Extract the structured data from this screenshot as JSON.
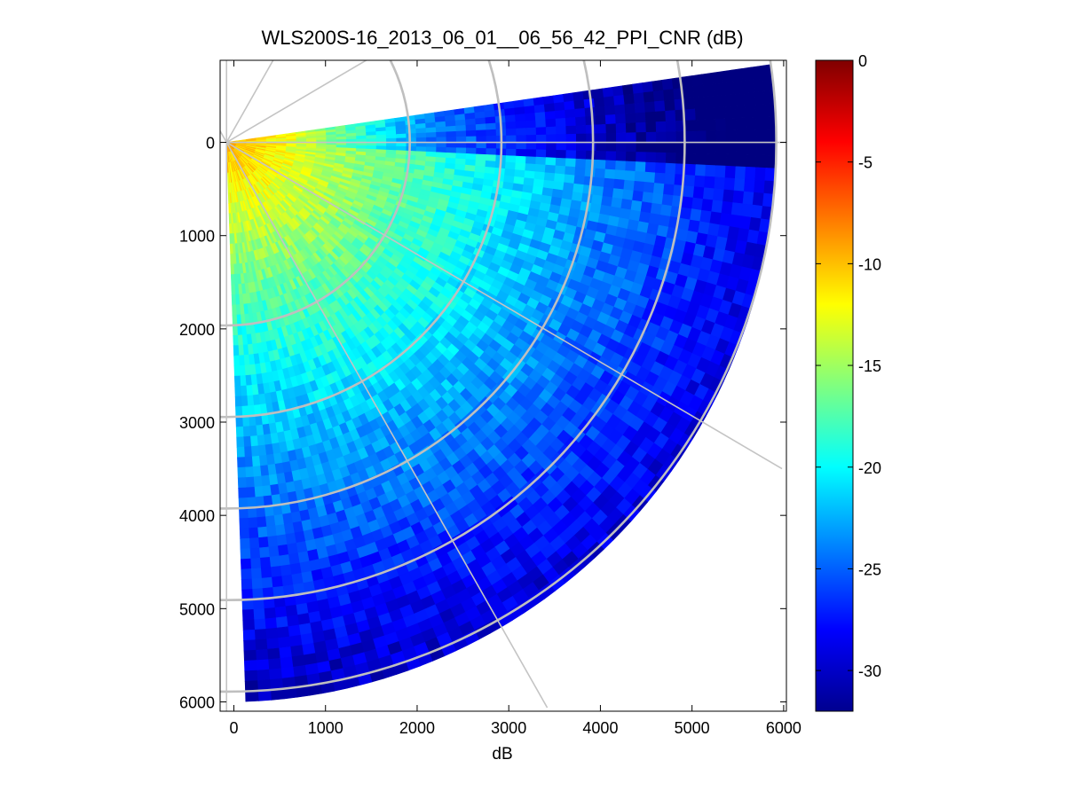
{
  "chart_data": {
    "type": "heatmap",
    "title": "WLS200S-16_2013_06_01__06_56_42_PPI_CNR (dB)",
    "xlabel": "dB",
    "ylabel": "",
    "xlim": [
      -150,
      6030
    ],
    "ylim": [
      6100,
      -880
    ],
    "x_ticks": [
      0,
      1000,
      2000,
      3000,
      4000,
      5000,
      6000
    ],
    "x_tick_labels": [
      "0",
      "1000",
      "2000",
      "3000",
      "4000",
      "5000",
      "6000"
    ],
    "y_ticks": [
      0,
      1000,
      2000,
      3000,
      4000,
      5000,
      6000
    ],
    "y_tick_labels": [
      "0",
      "1000",
      "2000",
      "3000",
      "4000",
      "5000",
      "6000"
    ],
    "scan": {
      "origin": [
        -80,
        0
      ],
      "max_range": 6000,
      "azimuth_start_deg": -8,
      "azimuth_end_deg": 88,
      "ring_radii": [
        2000,
        3000,
        4000,
        5000,
        6000
      ],
      "spoke_angles_deg": [
        -120,
        -90,
        -60,
        -30,
        0,
        30,
        60,
        90
      ],
      "field_description_note": "CNR falls from about -9 dB near the lidar to about -28 dB at max range; a low-CNR wedge lies between about -8 and 3 degrees"
    },
    "colorbar": {
      "colormap": "jet",
      "clim": [
        -32,
        0
      ],
      "ticks": [
        0,
        -5,
        -10,
        -15,
        -20,
        -25,
        -30
      ],
      "tick_labels": [
        "0",
        "-5",
        "-10",
        "-15",
        "-20",
        "-25",
        "-30"
      ]
    }
  },
  "colors": {
    "grid": "#bfbfbf",
    "axis": "#000000",
    "background": "#ffffff"
  }
}
